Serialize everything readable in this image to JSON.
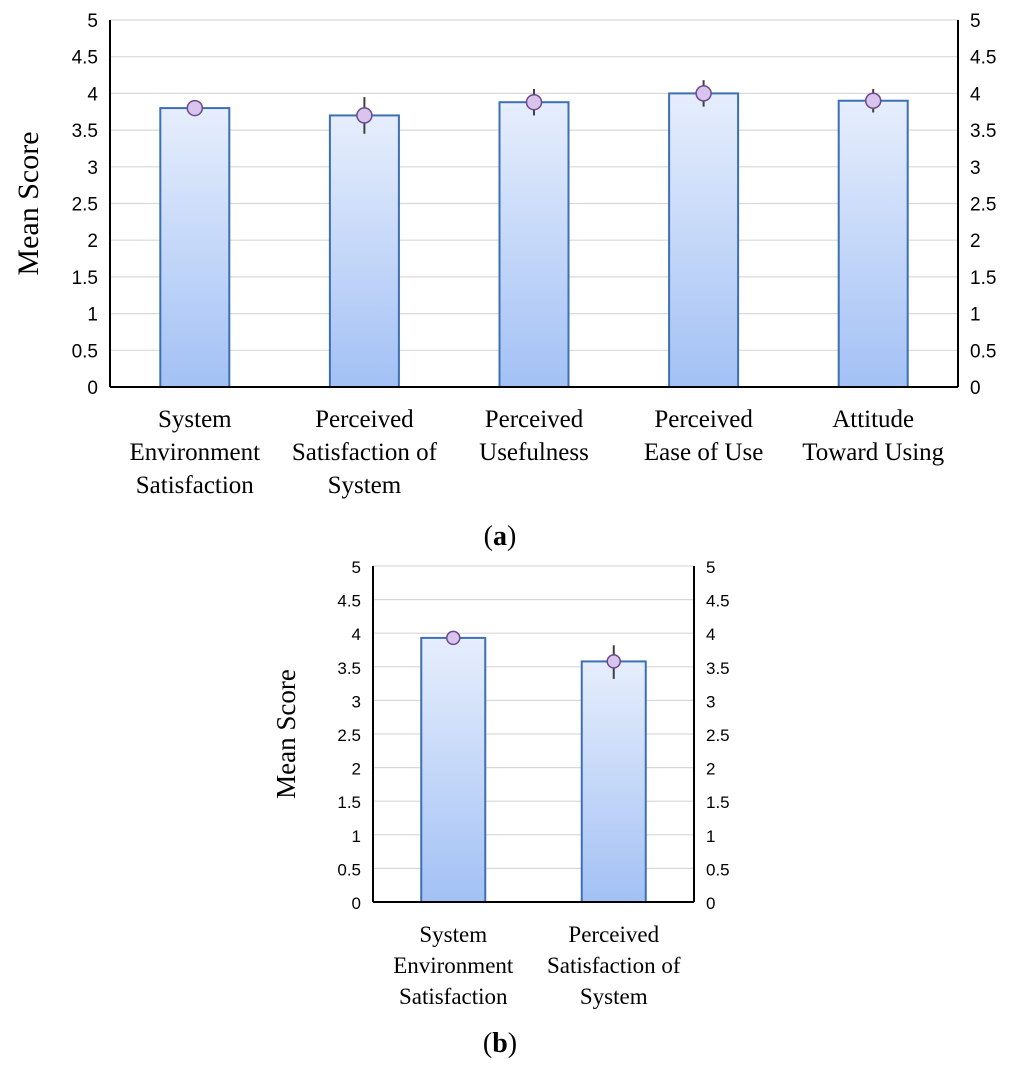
{
  "colors": {
    "bar_top": "#e6eefc",
    "bar_bottom": "#a3c1f5",
    "bar_stroke": "#3d6fb5",
    "marker_fill": "#d9c4ee",
    "marker_stroke": "#6a4a8a",
    "error_bar": "#404040",
    "grid": "#d9d9d9",
    "axis": "#000000"
  },
  "chart_data": [
    {
      "type": "bar",
      "panel_label": "a",
      "categories": [
        [
          "System",
          "Environment",
          "Satisfaction"
        ],
        [
          "Perceived",
          "Satisfaction of",
          "System"
        ],
        [
          "Perceived",
          "Usefulness"
        ],
        [
          "Perceived",
          "Ease of Use"
        ],
        [
          "Attitude",
          "Toward Using"
        ]
      ],
      "values": [
        3.8,
        3.7,
        3.88,
        4.0,
        3.9
      ],
      "error_low": [
        3.72,
        3.45,
        3.7,
        3.82,
        3.74
      ],
      "error_high": [
        3.88,
        3.95,
        4.06,
        4.18,
        4.06
      ],
      "ylabel": "Mean Score",
      "ylim": [
        0,
        5
      ],
      "yticks": [
        "0",
        "0.5",
        "1",
        "1.5",
        "2",
        "2.5",
        "3",
        "3.5",
        "4",
        "4.5",
        "5"
      ],
      "secondary_yticks": [
        "0",
        "0.5",
        "1",
        "1.5",
        "2",
        "2.5",
        "3",
        "3.5",
        "4",
        "4.5",
        "5"
      ],
      "grid": true
    },
    {
      "type": "bar",
      "panel_label": "b",
      "categories": [
        [
          "System",
          "Environment",
          "Satisfaction"
        ],
        [
          "Perceived",
          "Satisfaction of",
          "System"
        ]
      ],
      "values": [
        3.93,
        3.58
      ],
      "error_low": [
        3.88,
        3.32
      ],
      "error_high": [
        3.98,
        3.82
      ],
      "ylabel": "Mean Score",
      "ylim": [
        0,
        5
      ],
      "yticks": [
        "0",
        "0.5",
        "1",
        "1.5",
        "2",
        "2.5",
        "3",
        "3.5",
        "4",
        "4.5",
        "5"
      ],
      "secondary_yticks": [
        "0",
        "0.5",
        "1",
        "1.5",
        "2",
        "2.5",
        "3",
        "3.5",
        "4",
        "4.5",
        "5"
      ],
      "grid": true
    }
  ]
}
